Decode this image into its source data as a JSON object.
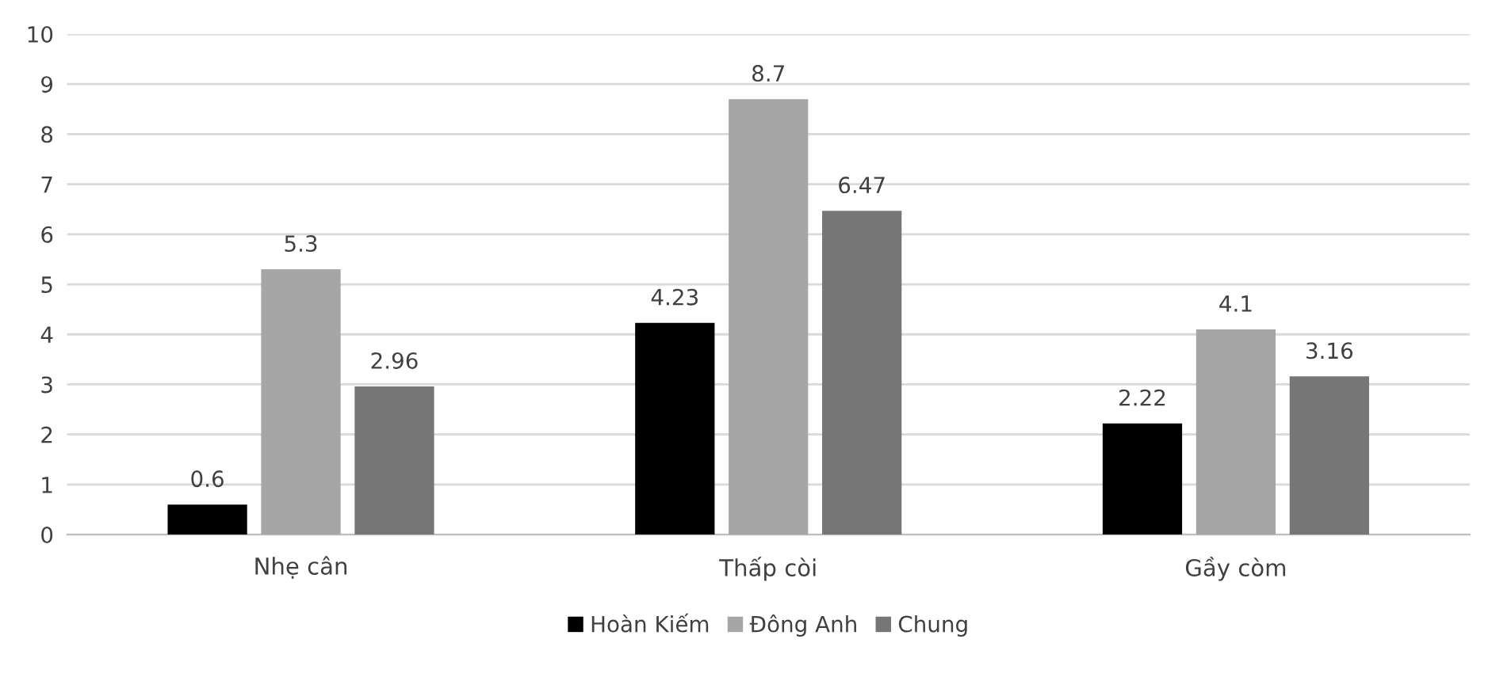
{
  "chart_data": {
    "type": "bar",
    "categories": [
      "Nhẹ cân",
      "Thấp còi",
      "Gầy còm"
    ],
    "series": [
      {
        "name": "Hoàn Kiếm",
        "color": "#000000",
        "values": [
          0.6,
          4.23,
          2.22
        ]
      },
      {
        "name": "Đông Anh",
        "color": "#a6a6a6",
        "values": [
          5.3,
          8.7,
          4.1
        ]
      },
      {
        "name": "Chung",
        "color": "#767676",
        "values": [
          2.96,
          6.47,
          3.16
        ]
      }
    ],
    "ylim": [
      0,
      10
    ],
    "yticks": [
      0,
      1,
      2,
      3,
      4,
      5,
      6,
      7,
      8,
      9,
      10
    ],
    "grid": "y",
    "legend": "bottom",
    "data_labels": true
  }
}
